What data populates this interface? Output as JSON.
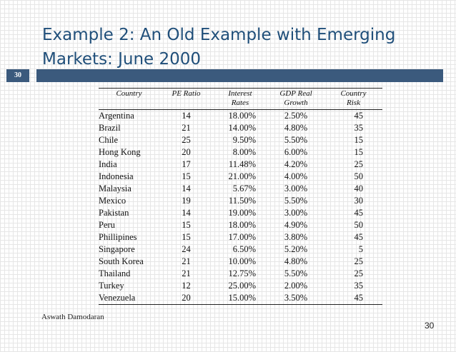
{
  "slide": {
    "title_line1": "Example 2: An Old Example with Emerging",
    "title_line2": "Markets: June 2000",
    "slide_number_badge": "30",
    "page_number": "30",
    "author": "Aswath Damodaran",
    "accent_color": "#3b5a7d",
    "title_color": "#1f4e79"
  },
  "table": {
    "headers": [
      {
        "line1": "Country",
        "line2": ""
      },
      {
        "line1": "PE Ratio",
        "line2": ""
      },
      {
        "line1": "Interest",
        "line2": "Rates"
      },
      {
        "line1": "GDP Real",
        "line2": "Growth"
      },
      {
        "line1": "Country",
        "line2": "Risk"
      }
    ],
    "rows": [
      [
        "Argentina",
        "14",
        "18.00%",
        "2.50%",
        "45"
      ],
      [
        "Brazil",
        "21",
        "14.00%",
        "4.80%",
        "35"
      ],
      [
        "Chile",
        "25",
        "9.50%",
        "5.50%",
        "15"
      ],
      [
        "Hong Kong",
        "20",
        "8.00%",
        "6.00%",
        "15"
      ],
      [
        "India",
        "17",
        "11.48%",
        "4.20%",
        "25"
      ],
      [
        "Indonesia",
        "15",
        "21.00%",
        "4.00%",
        "50"
      ],
      [
        "Malaysia",
        "14",
        "5.67%",
        "3.00%",
        "40"
      ],
      [
        "Mexico",
        "19",
        "11.50%",
        "5.50%",
        "30"
      ],
      [
        "Pakistan",
        "14",
        "19.00%",
        "3.00%",
        "45"
      ],
      [
        "Peru",
        "15",
        "18.00%",
        "4.90%",
        "50"
      ],
      [
        "Phillipines",
        "15",
        "17.00%",
        "3.80%",
        "45"
      ],
      [
        "Singapore",
        "24",
        "6.50%",
        "5.20%",
        "5"
      ],
      [
        "South Korea",
        "21",
        "10.00%",
        "4.80%",
        "25"
      ],
      [
        "Thailand",
        "21",
        "12.75%",
        "5.50%",
        "25"
      ],
      [
        "Turkey",
        "12",
        "25.00%",
        "2.00%",
        "35"
      ],
      [
        "Venezuela",
        "20",
        "15.00%",
        "3.50%",
        "45"
      ]
    ]
  }
}
